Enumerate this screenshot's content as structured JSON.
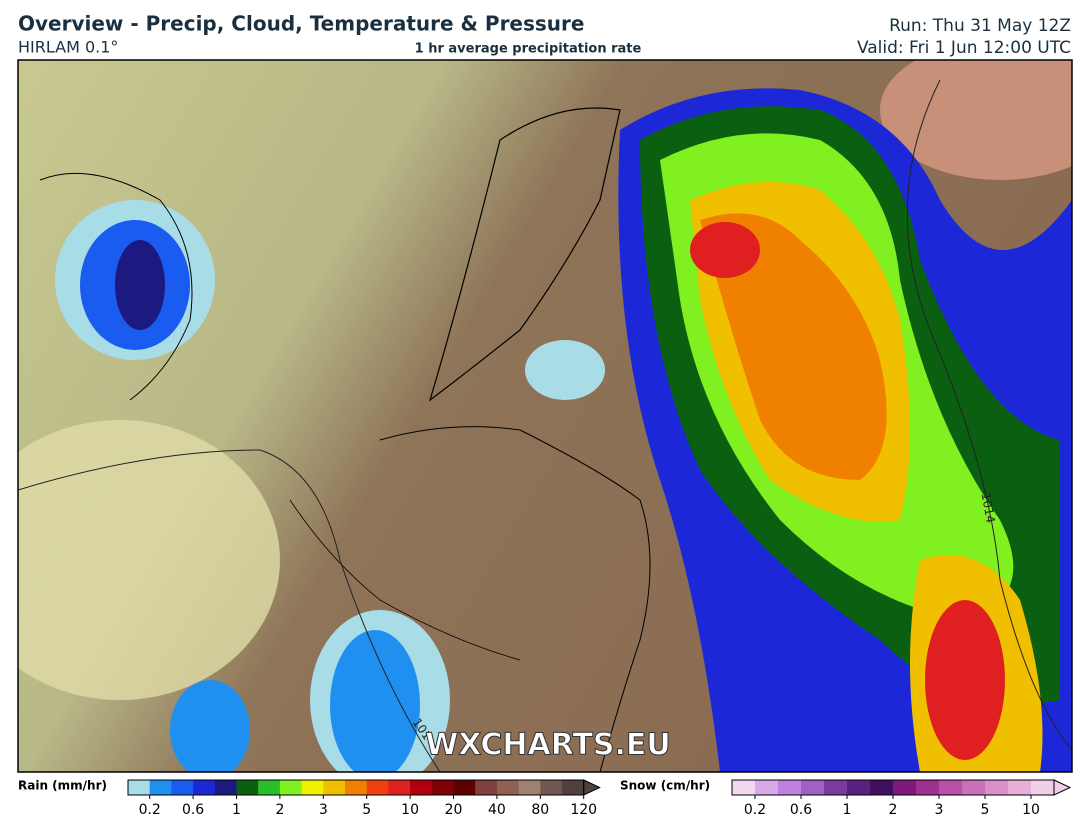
{
  "header": {
    "title": "Overview - Precip, Cloud, Temperature & Pressure",
    "model": "HIRLAM 0.1°",
    "subtitle": "1 hr average precipitation rate",
    "run": "Run: Thu 31 May 12Z",
    "valid": "Valid: Fri 1 Jun 12:00 UTC"
  },
  "map": {
    "watermark": "WXCHARTS.EU",
    "isobar_labels": [
      "1014",
      "101"
    ]
  },
  "legend": {
    "rain": {
      "label": "Rain (mm/hr)",
      "ticks": [
        "0.2",
        "0.6",
        "1",
        "2",
        "3",
        "5",
        "10",
        "20",
        "40",
        "80",
        "120"
      ],
      "colors": [
        "#a8dde8",
        "#2090f0",
        "#1a5cf0",
        "#1c28d8",
        "#1c1a80",
        "#0a6010",
        "#28c028",
        "#80f020",
        "#f0f000",
        "#f0c000",
        "#f08000",
        "#f04010",
        "#e02020",
        "#b00010",
        "#800008",
        "#600000",
        "#804040",
        "#906050",
        "#a08070",
        "#705850",
        "#504040"
      ]
    },
    "snow": {
      "label": "Snow (cm/hr)",
      "ticks": [
        "0.2",
        "0.6",
        "1",
        "2",
        "3",
        "5",
        "10"
      ],
      "colors": [
        "#f0d8f0",
        "#d8a8e8",
        "#c080e0",
        "#a060c8",
        "#7a3aa0",
        "#5a2080",
        "#401060",
        "#801880",
        "#a03090",
        "#b850a8",
        "#c870b8",
        "#d890c8",
        "#e8b0d8",
        "#f0d0e8"
      ]
    }
  }
}
